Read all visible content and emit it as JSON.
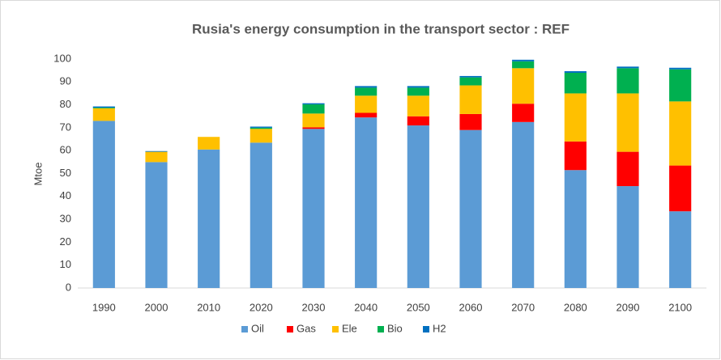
{
  "chart_data": {
    "type": "stacked_bar",
    "title": "Rusia's energy consumption in the transport sector : REF",
    "y_label": "Mtoe",
    "categories": [
      "1990",
      "2000",
      "2010",
      "2020",
      "2030",
      "2040",
      "2050",
      "2060",
      "2070",
      "2080",
      "2090",
      "2100"
    ],
    "series": [
      {
        "name": "Oil",
        "color": "#5b9bd5",
        "values": [
          73,
          55,
          60.5,
          63.5,
          69.5,
          74.5,
          71,
          69,
          72.5,
          51.5,
          44.5,
          33.5
        ]
      },
      {
        "name": "Gas",
        "color": "#ff0000",
        "values": [
          0,
          0,
          0,
          0,
          0.7,
          2,
          4,
          7,
          8,
          12.5,
          15,
          20
        ]
      },
      {
        "name": "Ele",
        "color": "#ffc000",
        "values": [
          5.5,
          4.5,
          5.5,
          6,
          6,
          7.5,
          9,
          12.5,
          15.5,
          21,
          25.5,
          28
        ]
      },
      {
        "name": "Bio",
        "color": "#00b050",
        "values": [
          0.3,
          0,
          0,
          0.5,
          4,
          3.5,
          3.5,
          3.5,
          3,
          9,
          11,
          14
        ]
      },
      {
        "name": "H2",
        "color": "#0070c0",
        "values": [
          0.5,
          0.3,
          0,
          0.5,
          0.5,
          0.7,
          0.7,
          0.6,
          0.7,
          0.7,
          0.7,
          0.7
        ]
      }
    ],
    "ylim": [
      0,
      100
    ],
    "yticks": [
      0,
      10,
      20,
      30,
      40,
      50,
      60,
      70,
      80,
      90,
      100
    ],
    "grid": false,
    "legend": "bottom"
  }
}
